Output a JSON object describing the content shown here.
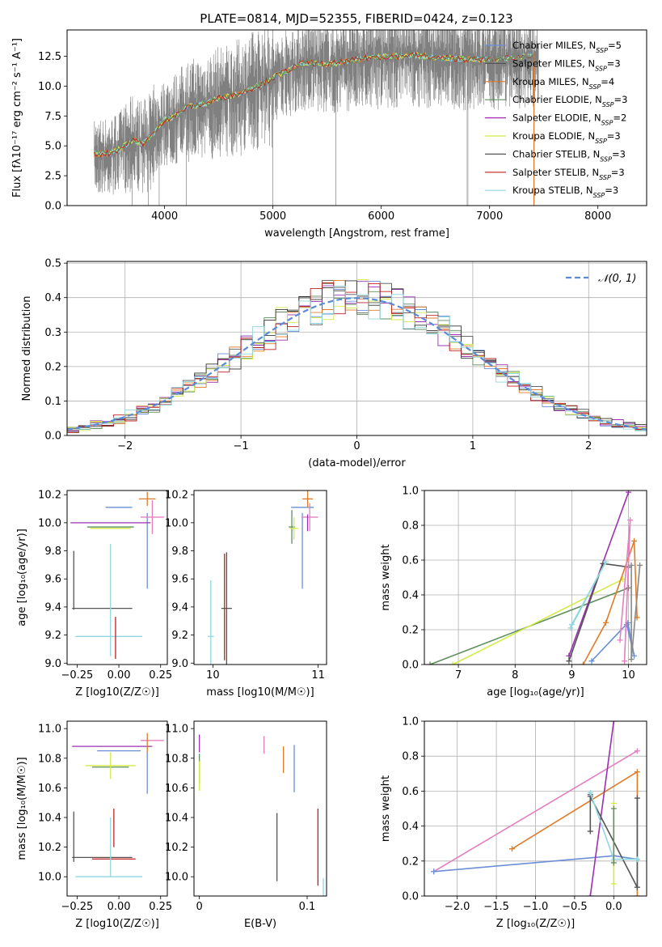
{
  "page": {
    "title": "PLATE=0814, MJD=52355, FIBERID=0424, z=0.123"
  },
  "colors": {
    "Chabrier MILES": "#6b8fd6",
    "Salpeter MILES": "#555555",
    "Kroupa MILES": "#e07b28",
    "Chabrier ELODIE": "#5f8f5f",
    "Salpeter ELODIE": "#9b30b0",
    "Kroupa ELODIE": "#d4ea4a",
    "Chabrier STELIB": "#555555",
    "Salpeter STELIB": "#c02020",
    "Kroupa STELIB": "#8fd8e0",
    "pink": "#e47fc0",
    "spectrum": "#808080",
    "normal_curve": "#5b8bd8"
  },
  "chart_data": [
    {
      "id": "spectrum",
      "type": "line",
      "title": "PLATE=0814, MJD=52355, FIBERID=0424, z=0.123",
      "xlabel": "wavelength [Angstrom, rest frame]",
      "ylabel": "Flux [f_λ 10^-17 erg cm^-2 s^-1 A^-1]",
      "xlim": [
        3100,
        8450
      ],
      "ylim": [
        0,
        14.7
      ],
      "xticks": [
        4000,
        5000,
        6000,
        7000,
        8000
      ],
      "yticks": [
        0.0,
        2.5,
        5.0,
        7.5,
        10.0,
        12.5
      ],
      "legend_position": "top-right",
      "legend": [
        {
          "label": "Chabrier MILES, N_SSP=5",
          "color": "#6b8fd6"
        },
        {
          "label": "Salpeter MILES, N_SSP=3",
          "color": "#555555"
        },
        {
          "label": "Kroupa MILES, N_SSP=4",
          "color": "#e07b28"
        },
        {
          "label": "Chabrier ELODIE, N_SSP=3",
          "color": "#5f8f5f"
        },
        {
          "label": "Salpeter ELODIE, N_SSP=2",
          "color": "#9b30b0"
        },
        {
          "label": "Kroupa ELODIE, N_SSP=3",
          "color": "#d4ea4a"
        },
        {
          "label": "Chabrier STELIB, N_SSP=3",
          "color": "#555555"
        },
        {
          "label": "Salpeter STELIB, N_SSP=3",
          "color": "#c02020"
        },
        {
          "label": "Kroupa STELIB, N_SSP=3",
          "color": "#8fd8e0"
        }
      ],
      "model_curve": {
        "x": [
          3350,
          3500,
          3600,
          3700,
          3800,
          3900,
          4000,
          4100,
          4200,
          4300,
          4400,
          4500,
          4700,
          4900,
          5100,
          5300,
          5500,
          5700,
          5900,
          6100,
          6300,
          6500,
          6700,
          6900,
          7100,
          7300,
          7400
        ],
        "y": [
          4.3,
          4.4,
          4.8,
          5.5,
          5.2,
          6.0,
          7.2,
          7.5,
          8.2,
          8.4,
          8.6,
          9.0,
          9.4,
          10.2,
          11.2,
          12.0,
          11.8,
          12.1,
          12.4,
          12.5,
          12.6,
          12.4,
          12.3,
          12.2,
          12.3,
          12.5,
          12.6
        ]
      },
      "observed_band": {
        "x_range": [
          3350,
          7450
        ],
        "y_low_frac": 0.55,
        "y_high_frac": 1.45
      }
    },
    {
      "id": "residuals",
      "type": "line",
      "xlabel": "(data-model)/error",
      "ylabel": "Normed distribution",
      "xlim": [
        -2.5,
        2.5
      ],
      "ylim": [
        0,
        0.505
      ],
      "xticks": [
        -2,
        -1,
        0,
        1,
        2
      ],
      "yticks": [
        0.0,
        0.1,
        0.2,
        0.3,
        0.4,
        0.5
      ],
      "grid": true,
      "legend_position": "top-right",
      "legend": [
        {
          "label": "𝒩(0, 1)",
          "color": "#5b8bd8",
          "style": "dashed"
        }
      ],
      "bin_width": 0.1
    },
    {
      "id": "age_vs_Z",
      "type": "scatter",
      "xlabel": "Z [log10(Z/Z☉)]",
      "ylabel": "age  [log10(age/yr)]",
      "xlim": [
        -0.31,
        0.29
      ],
      "ylim": [
        8.99,
        10.23
      ],
      "xticks": [
        -0.25,
        0.0,
        0.25
      ],
      "xtick_labels": [
        "−0.25",
        "0.00",
        "0.25"
      ],
      "yticks": [
        9.0,
        9.2,
        9.4,
        9.6,
        9.8,
        10.0,
        10.2
      ],
      "series": [
        {
          "color": "#6b8fd6",
          "x": 0.0,
          "y": 10.11,
          "xerr": 0.08,
          "yerr": 0.0
        },
        {
          "color": "#6b8fd6",
          "x": 0.17,
          "y": 9.8,
          "xerr": 0.0,
          "yerr": 0.27
        },
        {
          "color": "#e07b28",
          "x": 0.17,
          "y": 10.17,
          "xerr": 0.05,
          "yerr": 0.05
        },
        {
          "color": "#e47fc0",
          "x": 0.2,
          "y": 10.04,
          "xerr": 0.07,
          "yerr": 0.12
        },
        {
          "color": "#9b30b0",
          "x": -0.05,
          "y": 10.0,
          "xerr": 0.24,
          "yerr": 0.0
        },
        {
          "color": "#5f8f5f",
          "x": -0.05,
          "y": 9.97,
          "xerr": 0.14,
          "yerr": 0.0
        },
        {
          "color": "#d4ea4a",
          "x": -0.05,
          "y": 9.96,
          "xerr": 0.12,
          "yerr": 0.0
        },
        {
          "color": "#555555",
          "x": -0.27,
          "y": 9.59,
          "xerr": 0.0,
          "yerr": 0.21
        },
        {
          "color": "#555555",
          "x": -0.1,
          "y": 9.39,
          "xerr": 0.18,
          "yerr": 0.0
        },
        {
          "color": "#8fd8e0",
          "x": -0.06,
          "y": 9.19,
          "xerr": 0.2,
          "yerr": 0.0
        },
        {
          "color": "#8fd8e0",
          "x": -0.05,
          "y": 9.45,
          "xerr": 0.0,
          "yerr": 0.4
        },
        {
          "color": "#c02020",
          "x": -0.02,
          "y": 9.18,
          "xerr": 0.0,
          "yerr": 0.15
        }
      ]
    },
    {
      "id": "age_vs_mass",
      "type": "scatter",
      "xlabel": "mass [log10(M/M☉)]",
      "ylabel": "",
      "xlim": [
        9.82,
        11.08
      ],
      "ylim": [
        8.99,
        10.23
      ],
      "xticks": [
        10,
        11
      ],
      "yticks": [
        9.0,
        9.2,
        9.4,
        9.6,
        9.8,
        10.0,
        10.2
      ],
      "series": [
        {
          "color": "#6b8fd6",
          "x": 10.85,
          "y": 10.11,
          "xerr": 0.0,
          "yerr": 0.0
        },
        {
          "color": "#6b8fd6",
          "x": 10.85,
          "y": 9.8,
          "xerr": 0.0,
          "yerr": 0.27
        },
        {
          "color": "#e07b28",
          "x": 10.9,
          "y": 10.17,
          "xerr": 0.05,
          "yerr": 0.06
        },
        {
          "color": "#e47fc0",
          "x": 10.92,
          "y": 10.04,
          "xerr": 0.08,
          "yerr": 0.1
        },
        {
          "color": "#9b30b0",
          "x": 10.9,
          "y": 10.0,
          "xerr": 0.0,
          "yerr": 0.06
        },
        {
          "color": "#5f8f5f",
          "x": 10.75,
          "y": 9.97,
          "xerr": 0.03,
          "yerr": 0.12
        },
        {
          "color": "#d4ea4a",
          "x": 10.77,
          "y": 9.96,
          "xerr": 0.04,
          "yerr": 0.08
        },
        {
          "color": "#555555",
          "x": 10.13,
          "y": 9.39,
          "xerr": 0.05,
          "yerr": 0.4
        },
        {
          "color": "#c02020",
          "x": 10.11,
          "y": 9.4,
          "xerr": 0.0,
          "yerr": 0.38
        },
        {
          "color": "#8fd8e0",
          "x": 9.98,
          "y": 9.19,
          "xerr": 0.03,
          "yerr": 0.4
        }
      ]
    },
    {
      "id": "weight_vs_age",
      "type": "line",
      "xlabel": "age  [log10(age/yr)]",
      "ylabel": "mass weight",
      "xlim": [
        6.4,
        10.32
      ],
      "ylim": [
        0,
        1.0
      ],
      "xticks": [
        7,
        8,
        9,
        10
      ],
      "yticks": [
        0.0,
        0.2,
        0.4,
        0.6,
        0.8,
        1.0
      ],
      "grid": true,
      "series": [
        {
          "color": "#5f8f5f",
          "x": [
            6.5,
            10.0
          ],
          "y": [
            0.0,
            0.44
          ]
        },
        {
          "color": "#d4ea4a",
          "x": [
            6.9,
            9.9
          ],
          "y": [
            0.0,
            0.49
          ]
        },
        {
          "color": "#9b30b0",
          "x": [
            8.95,
            10.0
          ],
          "y": [
            0.05,
            0.99
          ]
        },
        {
          "color": "#555555",
          "x": [
            8.95,
            9.55,
            10.0
          ],
          "y": [
            0.02,
            0.58,
            0.56
          ]
        },
        {
          "color": "#8fd8e0",
          "x": [
            8.98,
            9.6,
            9.0
          ],
          "y": [
            0.21,
            0.59,
            0.23
          ]
        },
        {
          "color": "#e07b28",
          "x": [
            9.2,
            9.6,
            10.1,
            10.15
          ],
          "y": [
            0.0,
            0.24,
            0.71,
            0.27
          ]
        },
        {
          "color": "#6b8fd6",
          "x": [
            9.35,
            9.99,
            10.1,
            9.97
          ],
          "y": [
            0.02,
            0.24,
            0.05,
            0.23
          ]
        },
        {
          "color": "#e47fc0",
          "x": [
            9.85,
            10.03,
            9.93
          ],
          "y": [
            0.14,
            0.83,
            0.02
          ]
        },
        {
          "color": "#888888",
          "x": [
            10.05,
            10.05,
            10.2
          ],
          "y": [
            0.57,
            0.03,
            0.57
          ]
        }
      ]
    },
    {
      "id": "mass_vs_Z",
      "type": "scatter",
      "xlabel": "Z [log10(Z/Z☉)]",
      "ylabel": "mass [log10(M/M☉)]",
      "xlim": [
        -0.31,
        0.29
      ],
      "ylim": [
        9.87,
        11.05
      ],
      "xticks": [
        -0.25,
        0.0,
        0.25
      ],
      "xtick_labels": [
        "−0.25",
        "0.00",
        "0.25"
      ],
      "yticks": [
        10.0,
        10.2,
        10.4,
        10.6,
        10.8,
        11.0
      ],
      "series": [
        {
          "color": "#e47fc0",
          "x": 0.2,
          "y": 10.92,
          "xerr": 0.07,
          "yerr": 0.0
        },
        {
          "color": "#9b30b0",
          "x": -0.04,
          "y": 10.88,
          "xerr": 0.24,
          "yerr": 0.0
        },
        {
          "color": "#6b8fd6",
          "x": 0.0,
          "y": 10.85,
          "xerr": 0.13,
          "yerr": 0.0
        },
        {
          "color": "#e07b28",
          "x": 0.17,
          "y": 10.9,
          "xerr": 0.0,
          "yerr": 0.07
        },
        {
          "color": "#6b8fd6",
          "x": 0.17,
          "y": 10.7,
          "xerr": 0.0,
          "yerr": 0.14
        },
        {
          "color": "#5f8f5f",
          "x": -0.05,
          "y": 10.74,
          "xerr": 0.11,
          "yerr": 0.0
        },
        {
          "color": "#d4ea4a",
          "x": -0.05,
          "y": 10.75,
          "xerr": 0.15,
          "yerr": 0.09
        },
        {
          "color": "#555555",
          "x": -0.27,
          "y": 10.27,
          "xerr": 0.0,
          "yerr": 0.17
        },
        {
          "color": "#555555",
          "x": -0.1,
          "y": 10.13,
          "xerr": 0.18,
          "yerr": 0.0
        },
        {
          "color": "#c02020",
          "x": -0.03,
          "y": 10.12,
          "xerr": 0.13,
          "yerr": 0.0
        },
        {
          "color": "#c02020",
          "x": -0.03,
          "y": 10.33,
          "xerr": 0.0,
          "yerr": 0.13
        },
        {
          "color": "#8fd8e0",
          "x": -0.06,
          "y": 10.0,
          "xerr": 0.2,
          "yerr": 0.0
        },
        {
          "color": "#8fd8e0",
          "x": -0.05,
          "y": 10.2,
          "xerr": 0.0,
          "yerr": 0.2
        }
      ]
    },
    {
      "id": "mass_vs_ebv",
      "type": "scatter",
      "xlabel": "E(B-V)",
      "ylabel": "",
      "xlim": [
        -0.005,
        0.118
      ],
      "ylim": [
        9.87,
        11.05
      ],
      "xticks": [
        0.0,
        0.1
      ],
      "yticks": [
        10.0,
        10.2,
        10.4,
        10.6,
        10.8,
        11.0
      ],
      "series": [
        {
          "color": "#9b30b0",
          "x": 0.0,
          "y": 10.9,
          "xerr": 0.0,
          "yerr": 0.06
        },
        {
          "color": "#5f8f5f",
          "x": 0.0,
          "y": 10.73,
          "xerr": 0.0,
          "yerr": 0.1
        },
        {
          "color": "#d4ea4a",
          "x": 0.0,
          "y": 10.68,
          "xerr": 0.0,
          "yerr": 0.1
        },
        {
          "color": "#e47fc0",
          "x": 0.06,
          "y": 10.89,
          "xerr": 0.0,
          "yerr": 0.06
        },
        {
          "color": "#e07b28",
          "x": 0.078,
          "y": 10.79,
          "xerr": 0.0,
          "yerr": 0.09
        },
        {
          "color": "#6b8fd6",
          "x": 0.088,
          "y": 10.73,
          "xerr": 0.0,
          "yerr": 0.16
        },
        {
          "color": "#555555",
          "x": 0.072,
          "y": 10.2,
          "xerr": 0.0,
          "yerr": 0.23
        },
        {
          "color": "#c02020",
          "x": 0.11,
          "y": 10.2,
          "xerr": 0.0,
          "yerr": 0.26
        },
        {
          "color": "#8fd8e0",
          "x": 0.115,
          "y": 9.93,
          "xerr": 0.0,
          "yerr": 0.06
        }
      ]
    },
    {
      "id": "weight_vs_Z",
      "type": "line",
      "xlabel": "Z [log10(Z/Z☉)]",
      "ylabel": "mass weight",
      "xlim": [
        -2.42,
        0.42
      ],
      "ylim": [
        0,
        1.0
      ],
      "xticks": [
        -2.0,
        -1.5,
        -1.0,
        -0.5,
        0.0
      ],
      "xtick_labels": [
        "−2.0",
        "−1.5",
        "−1.0",
        "−0.5",
        "0.0"
      ],
      "yticks": [
        0.0,
        0.2,
        0.4,
        0.6,
        0.8,
        1.0
      ],
      "grid": true,
      "series": [
        {
          "color": "#e47fc0",
          "x": [
            -2.3,
            0.3
          ],
          "y": [
            0.14,
            0.83
          ]
        },
        {
          "color": "#6b8fd6",
          "x": [
            -2.3,
            0.0,
            0.3
          ],
          "y": [
            0.14,
            0.23,
            0.21
          ]
        },
        {
          "color": "#e07b28",
          "x": [
            -1.3,
            0.3,
            0.3
          ],
          "y": [
            0.27,
            0.71,
            0.0
          ]
        },
        {
          "color": "#9b30b0",
          "x": [
            -0.3,
            0.0
          ],
          "y": [
            0.0,
            1.0
          ]
        },
        {
          "color": "#555555",
          "x": [
            -0.3,
            0.3,
            0.3
          ],
          "y": [
            0.57,
            0.05,
            0.56
          ]
        },
        {
          "color": "#555555",
          "x": [
            -0.3,
            -0.3
          ],
          "y": [
            0.37,
            0.58
          ]
        },
        {
          "color": "#8fd8e0",
          "x": [
            -0.3,
            0.0,
            0.3
          ],
          "y": [
            0.59,
            0.21,
            0.21
          ]
        },
        {
          "color": "#d4ea4a",
          "x": [
            0.0,
            0.0
          ],
          "y": [
            0.07,
            0.53
          ]
        },
        {
          "color": "#5f8f5f",
          "x": [
            0.0,
            0.0
          ],
          "y": [
            0.19,
            0.5
          ]
        }
      ]
    }
  ]
}
